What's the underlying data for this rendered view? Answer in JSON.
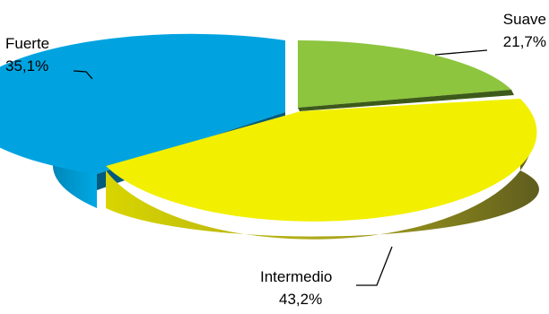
{
  "chart_data": {
    "type": "pie",
    "title": "",
    "three_d": true,
    "legend": "none",
    "series": [
      {
        "values": [
          {
            "name": "Suave",
            "value": 21.7,
            "label": "21,7%",
            "color": "#8dc53e",
            "side_color": "#3d5a1a"
          },
          {
            "name": "Intermedio",
            "value": 43.2,
            "label": "43,2%",
            "color": "#f2ef00",
            "side_color": "#66641c"
          },
          {
            "name": "Fuerte",
            "value": 35.1,
            "label": "35,1%",
            "color": "#00a3e0",
            "side_color": "#005a7c"
          }
        ]
      }
    ]
  }
}
